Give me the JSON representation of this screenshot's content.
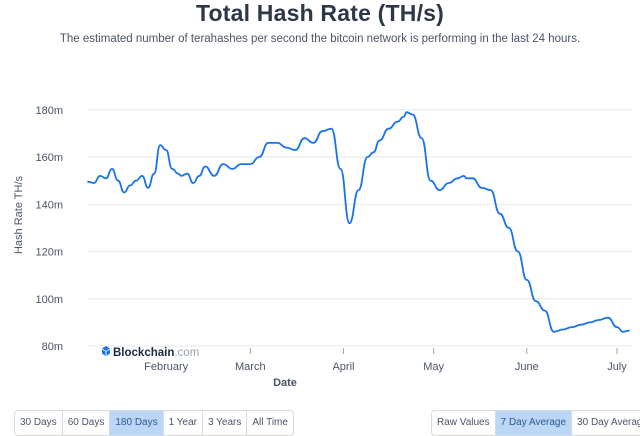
{
  "header": {
    "title": "Total Hash Rate (TH/s)",
    "subtitle": "The estimated number of terahashes per second the bitcoin network is performing in the last 24 hours."
  },
  "watermark": {
    "brand": "Blockchain",
    "suffix": ".com"
  },
  "range_buttons": [
    {
      "label": "30 Days",
      "active": false
    },
    {
      "label": "60 Days",
      "active": false
    },
    {
      "label": "180 Days",
      "active": true
    },
    {
      "label": "1 Year",
      "active": false
    },
    {
      "label": "3 Years",
      "active": false
    },
    {
      "label": "All Time",
      "active": false
    }
  ],
  "avg_buttons": [
    {
      "label": "Raw Values",
      "active": false
    },
    {
      "label": "7 Day Average",
      "active": true
    },
    {
      "label": "30 Day Average",
      "active": false
    }
  ],
  "colors": {
    "line": "#1a73e8",
    "grid": "#e6e9ed",
    "active_button": "#bcd6f5"
  },
  "chart_data": {
    "type": "line",
    "title": "Total Hash Rate (TH/s)",
    "xlabel": "Date",
    "ylabel": "Hash Rate TH/s",
    "ylim": [
      80,
      185
    ],
    "yticks": [
      {
        "value": 80,
        "label": "80m"
      },
      {
        "value": 100,
        "label": "100m"
      },
      {
        "value": 120,
        "label": "120m"
      },
      {
        "value": 140,
        "label": "140m"
      },
      {
        "value": 160,
        "label": "160m"
      },
      {
        "value": 180,
        "label": "180m"
      }
    ],
    "xticks": [
      {
        "date": "2021-02-01",
        "label": "February"
      },
      {
        "date": "2021-03-01",
        "label": "March"
      },
      {
        "date": "2021-04-01",
        "label": "April"
      },
      {
        "date": "2021-05-01",
        "label": "May"
      },
      {
        "date": "2021-06-01",
        "label": "June"
      },
      {
        "date": "2021-07-01",
        "label": "July"
      }
    ],
    "grid": true,
    "legend": "none",
    "series": [
      {
        "x": [
          "2021-01-06",
          "2021-01-08",
          "2021-01-10",
          "2021-01-12",
          "2021-01-14",
          "2021-01-16",
          "2021-01-18",
          "2021-01-20",
          "2021-01-22",
          "2021-01-24",
          "2021-01-26",
          "2021-01-28",
          "2021-01-30",
          "2021-02-01",
          "2021-02-03",
          "2021-02-05",
          "2021-02-06",
          "2021-02-08",
          "2021-02-10",
          "2021-02-12",
          "2021-02-14",
          "2021-02-17",
          "2021-02-20",
          "2021-02-23",
          "2021-02-26",
          "2021-03-01",
          "2021-03-04",
          "2021-03-07",
          "2021-03-10",
          "2021-03-13",
          "2021-03-16",
          "2021-03-19",
          "2021-03-22",
          "2021-03-25",
          "2021-03-28",
          "2021-03-31",
          "2021-04-03",
          "2021-04-06",
          "2021-04-09",
          "2021-04-11",
          "2021-04-13",
          "2021-04-16",
          "2021-04-19",
          "2021-04-21",
          "2021-04-22",
          "2021-04-24",
          "2021-04-27",
          "2021-04-30",
          "2021-05-03",
          "2021-05-06",
          "2021-05-09",
          "2021-05-11",
          "2021-05-12",
          "2021-05-14",
          "2021-05-17",
          "2021-05-20",
          "2021-05-23",
          "2021-05-26",
          "2021-05-29",
          "2021-06-01",
          "2021-06-04",
          "2021-06-07",
          "2021-06-10",
          "2021-06-13",
          "2021-06-16",
          "2021-06-19",
          "2021-06-22",
          "2021-06-25",
          "2021-06-28",
          "2021-07-01",
          "2021-07-03",
          "2021-07-05"
        ],
        "y": [
          149.5,
          149,
          152,
          151,
          155,
          150,
          145,
          148,
          150,
          152,
          147,
          153,
          165,
          163,
          155,
          153,
          152,
          153,
          149,
          152,
          156,
          152,
          157,
          155,
          157,
          157,
          160,
          166,
          166,
          164,
          163,
          168,
          166,
          171,
          172,
          155,
          132,
          146,
          160,
          162,
          167,
          172,
          175,
          177,
          179,
          178,
          168,
          150,
          146,
          149,
          151,
          152,
          151,
          151,
          147,
          146,
          136,
          130,
          120,
          108,
          99,
          95,
          86,
          87,
          88,
          89,
          90,
          91,
          92,
          88,
          86,
          86.5
        ]
      }
    ]
  }
}
